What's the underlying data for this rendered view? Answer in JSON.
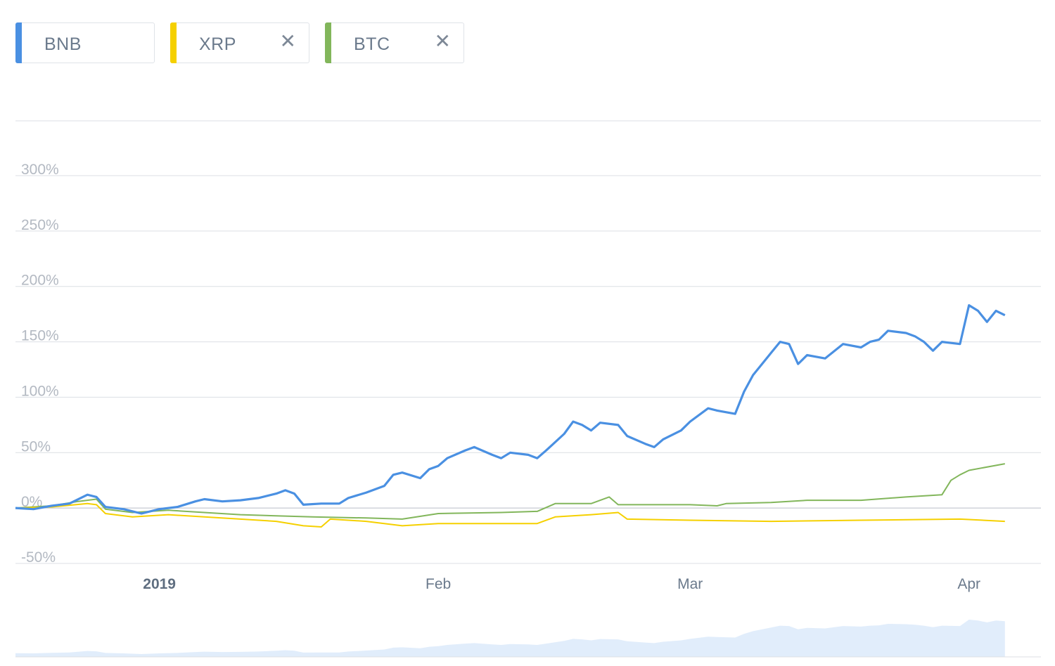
{
  "legend": {
    "chips": [
      {
        "label": "BNB",
        "color": "#4a90e2",
        "removable": false
      },
      {
        "label": "XRP",
        "color": "#f5d000",
        "removable": true
      },
      {
        "label": "BTC",
        "color": "#82b65b",
        "removable": true
      }
    ],
    "close_glyph": "✕"
  },
  "chart_data": {
    "type": "line",
    "y_tick_labels": [
      "300%",
      "250%",
      "200%",
      "150%",
      "100%",
      "50%",
      "0%",
      "-50%"
    ],
    "y_ticks": [
      300,
      250,
      200,
      150,
      100,
      50,
      0,
      -50
    ],
    "ylim": [
      -50,
      350
    ],
    "x_tick_labels": [
      {
        "label": "2019",
        "date": "2019-01-01",
        "bold": true
      },
      {
        "label": "Feb",
        "date": "2019-02-01",
        "bold": false
      },
      {
        "label": "Mar",
        "date": "2019-03-01",
        "bold": false
      },
      {
        "label": "Apr",
        "date": "2019-04-01",
        "bold": false
      }
    ],
    "xlim": [
      "2018-12-16",
      "2019-04-09"
    ],
    "series": [
      {
        "name": "BNB",
        "color": "#4a90e2",
        "points": [
          [
            "2018-12-16",
            0
          ],
          [
            "2018-12-18",
            -1
          ],
          [
            "2018-12-20",
            2
          ],
          [
            "2018-12-22",
            4
          ],
          [
            "2018-12-24",
            12
          ],
          [
            "2018-12-25",
            10
          ],
          [
            "2018-12-26",
            1
          ],
          [
            "2018-12-28",
            -1
          ],
          [
            "2018-12-30",
            -5
          ],
          [
            "2019-01-01",
            -1
          ],
          [
            "2019-01-03",
            1
          ],
          [
            "2019-01-05",
            6
          ],
          [
            "2019-01-06",
            8
          ],
          [
            "2019-01-08",
            6
          ],
          [
            "2019-01-10",
            7
          ],
          [
            "2019-01-12",
            9
          ],
          [
            "2019-01-14",
            13
          ],
          [
            "2019-01-15",
            16
          ],
          [
            "2019-01-16",
            13
          ],
          [
            "2019-01-17",
            3
          ],
          [
            "2019-01-19",
            4
          ],
          [
            "2019-01-21",
            4
          ],
          [
            "2019-01-22",
            9
          ],
          [
            "2019-01-24",
            14
          ],
          [
            "2019-01-26",
            20
          ],
          [
            "2019-01-27",
            30
          ],
          [
            "2019-01-28",
            32
          ],
          [
            "2019-01-30",
            27
          ],
          [
            "2019-01-31",
            35
          ],
          [
            "2019-02-01",
            38
          ],
          [
            "2019-02-02",
            45
          ],
          [
            "2019-02-04",
            52
          ],
          [
            "2019-02-05",
            55
          ],
          [
            "2019-02-07",
            48
          ],
          [
            "2019-02-08",
            45
          ],
          [
            "2019-02-09",
            50
          ],
          [
            "2019-02-11",
            48
          ],
          [
            "2019-02-12",
            45
          ],
          [
            "2019-02-13",
            52
          ],
          [
            "2019-02-15",
            67
          ],
          [
            "2019-02-16",
            78
          ],
          [
            "2019-02-17",
            75
          ],
          [
            "2019-02-18",
            70
          ],
          [
            "2019-02-19",
            77
          ],
          [
            "2019-02-21",
            75
          ],
          [
            "2019-02-22",
            65
          ],
          [
            "2019-02-24",
            58
          ],
          [
            "2019-02-25",
            55
          ],
          [
            "2019-02-26",
            62
          ],
          [
            "2019-02-28",
            70
          ],
          [
            "2019-03-01",
            78
          ],
          [
            "2019-03-03",
            90
          ],
          [
            "2019-03-04",
            88
          ],
          [
            "2019-03-06",
            85
          ],
          [
            "2019-03-07",
            105
          ],
          [
            "2019-03-08",
            120
          ],
          [
            "2019-03-10",
            140
          ],
          [
            "2019-03-11",
            150
          ],
          [
            "2019-03-12",
            148
          ],
          [
            "2019-03-13",
            130
          ],
          [
            "2019-03-14",
            138
          ],
          [
            "2019-03-16",
            135
          ],
          [
            "2019-03-18",
            148
          ],
          [
            "2019-03-20",
            145
          ],
          [
            "2019-03-21",
            150
          ],
          [
            "2019-03-22",
            152
          ],
          [
            "2019-03-23",
            160
          ],
          [
            "2019-03-25",
            158
          ],
          [
            "2019-03-26",
            155
          ],
          [
            "2019-03-27",
            150
          ],
          [
            "2019-03-28",
            142
          ],
          [
            "2019-03-29",
            150
          ],
          [
            "2019-03-31",
            148
          ],
          [
            "2019-04-01",
            183
          ],
          [
            "2019-04-02",
            178
          ],
          [
            "2019-04-03",
            168
          ],
          [
            "2019-04-04",
            178
          ],
          [
            "2019-04-05",
            174
          ]
        ]
      },
      {
        "name": "XRP",
        "color": "#f5d000",
        "points": [
          [
            "2018-12-16",
            0
          ],
          [
            "2018-12-20",
            1
          ],
          [
            "2018-12-24",
            4
          ],
          [
            "2018-12-25",
            3
          ],
          [
            "2018-12-26",
            -5
          ],
          [
            "2018-12-29",
            -8
          ],
          [
            "2019-01-02",
            -6
          ],
          [
            "2019-01-06",
            -8
          ],
          [
            "2019-01-10",
            -10
          ],
          [
            "2019-01-14",
            -12
          ],
          [
            "2019-01-17",
            -16
          ],
          [
            "2019-01-19",
            -17
          ],
          [
            "2019-01-20",
            -10
          ],
          [
            "2019-01-24",
            -12
          ],
          [
            "2019-01-28",
            -16
          ],
          [
            "2019-02-01",
            -14
          ],
          [
            "2019-02-08",
            -14
          ],
          [
            "2019-02-12",
            -14
          ],
          [
            "2019-02-14",
            -8
          ],
          [
            "2019-02-18",
            -6
          ],
          [
            "2019-02-21",
            -4
          ],
          [
            "2019-02-22",
            -10
          ],
          [
            "2019-03-01",
            -11
          ],
          [
            "2019-03-10",
            -12
          ],
          [
            "2019-03-20",
            -11
          ],
          [
            "2019-03-31",
            -10
          ],
          [
            "2019-04-05",
            -12
          ]
        ]
      },
      {
        "name": "BTC",
        "color": "#82b65b",
        "points": [
          [
            "2018-12-16",
            0
          ],
          [
            "2018-12-20",
            2
          ],
          [
            "2018-12-23",
            6
          ],
          [
            "2018-12-25",
            8
          ],
          [
            "2018-12-26",
            -1
          ],
          [
            "2018-12-29",
            -4
          ],
          [
            "2019-01-02",
            -2
          ],
          [
            "2019-01-06",
            -4
          ],
          [
            "2019-01-10",
            -6
          ],
          [
            "2019-01-14",
            -7
          ],
          [
            "2019-01-18",
            -8
          ],
          [
            "2019-01-24",
            -9
          ],
          [
            "2019-01-28",
            -10
          ],
          [
            "2019-02-01",
            -5
          ],
          [
            "2019-02-08",
            -4
          ],
          [
            "2019-02-12",
            -3
          ],
          [
            "2019-02-14",
            4
          ],
          [
            "2019-02-18",
            4
          ],
          [
            "2019-02-20",
            10
          ],
          [
            "2019-02-21",
            3
          ],
          [
            "2019-03-01",
            3
          ],
          [
            "2019-03-04",
            2
          ],
          [
            "2019-03-05",
            4
          ],
          [
            "2019-03-10",
            5
          ],
          [
            "2019-03-14",
            7
          ],
          [
            "2019-03-20",
            7
          ],
          [
            "2019-03-25",
            10
          ],
          [
            "2019-03-29",
            12
          ],
          [
            "2019-03-30",
            25
          ],
          [
            "2019-03-31",
            30
          ],
          [
            "2019-04-01",
            34
          ],
          [
            "2019-04-05",
            40
          ]
        ]
      }
    ],
    "navigator": {
      "color": "#c9def7"
    }
  }
}
